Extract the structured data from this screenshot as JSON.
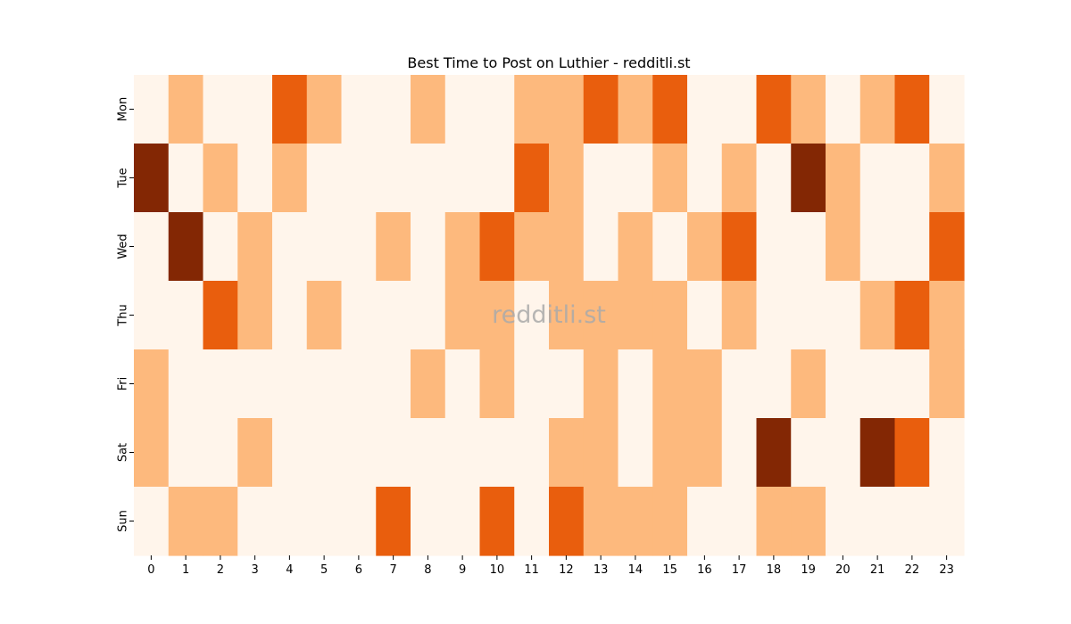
{
  "chart_data": {
    "type": "heatmap",
    "title": "Best Time to Post on Luthier - redditli.st",
    "watermark": "redditli.st",
    "xlabel": "",
    "ylabel": "",
    "x": [
      "0",
      "1",
      "2",
      "3",
      "4",
      "5",
      "6",
      "7",
      "8",
      "9",
      "10",
      "11",
      "12",
      "13",
      "14",
      "15",
      "16",
      "17",
      "18",
      "19",
      "20",
      "21",
      "22",
      "23"
    ],
    "y": [
      "Mon",
      "Tue",
      "Wed",
      "Thu",
      "Fri",
      "Sat",
      "Sun"
    ],
    "colormap": "Oranges",
    "levels": [
      0,
      1,
      2,
      3
    ],
    "level_colors": [
      "#fff5eb",
      "#fdb97d",
      "#e95e0d",
      "#832704"
    ],
    "legend": "none",
    "grid": false,
    "values": [
      [
        0,
        1,
        0,
        0,
        2,
        1,
        0,
        0,
        1,
        0,
        0,
        1,
        1,
        2,
        1,
        2,
        0,
        0,
        2,
        1,
        0,
        1,
        2,
        0
      ],
      [
        3,
        0,
        1,
        0,
        1,
        0,
        0,
        0,
        0,
        0,
        0,
        2,
        1,
        0,
        0,
        1,
        0,
        1,
        0,
        3,
        1,
        0,
        0,
        1
      ],
      [
        0,
        3,
        0,
        1,
        0,
        0,
        0,
        1,
        0,
        1,
        2,
        1,
        1,
        0,
        1,
        0,
        1,
        2,
        0,
        0,
        1,
        0,
        0,
        2
      ],
      [
        0,
        0,
        2,
        1,
        0,
        1,
        0,
        0,
        0,
        1,
        1,
        0,
        1,
        1,
        1,
        1,
        0,
        1,
        0,
        0,
        0,
        1,
        2,
        1
      ],
      [
        1,
        0,
        0,
        0,
        0,
        0,
        0,
        0,
        1,
        0,
        1,
        0,
        0,
        1,
        0,
        1,
        1,
        0,
        0,
        1,
        0,
        0,
        0,
        1
      ],
      [
        1,
        0,
        0,
        1,
        0,
        0,
        0,
        0,
        0,
        0,
        0,
        0,
        1,
        1,
        0,
        1,
        1,
        0,
        3,
        0,
        0,
        3,
        2,
        0
      ],
      [
        0,
        1,
        1,
        0,
        0,
        0,
        0,
        2,
        0,
        0,
        2,
        0,
        2,
        1,
        1,
        1,
        0,
        0,
        1,
        1,
        0,
        0,
        0,
        0
      ]
    ]
  }
}
